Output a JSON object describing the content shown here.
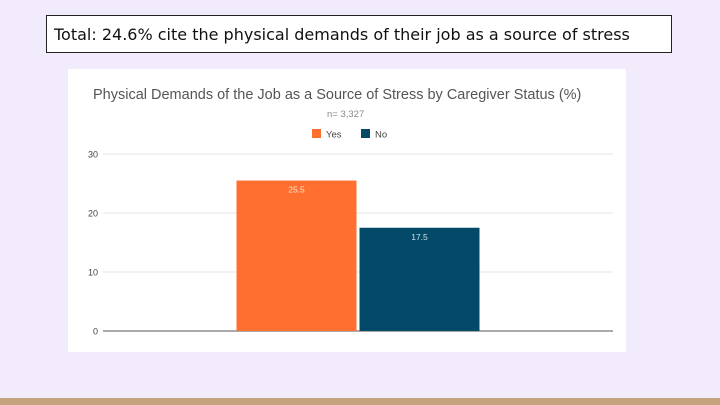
{
  "slide": {
    "caption": "Total: 24.6% cite the physical demands of their job as a source of stress"
  },
  "colors": {
    "background": "#f1ebfb",
    "footer_bar": "#c4a37d",
    "yes": "#ff6f2f",
    "no": "#024a67"
  },
  "chart_data": {
    "type": "bar",
    "title": "Physical Demands of the Job as a Source of Stress by Caregiver Status (%)",
    "subtitle": "n= 3,327",
    "categories": [
      ""
    ],
    "series": [
      {
        "name": "Yes",
        "values": [
          25.5
        ],
        "color": "#ff6f2f"
      },
      {
        "name": "No",
        "values": [
          17.5
        ],
        "color": "#024a67"
      }
    ],
    "ylim": [
      0,
      30
    ],
    "yticks": [
      0,
      10,
      20,
      30
    ],
    "grid": true,
    "legend": "top-center",
    "data_labels": true
  }
}
